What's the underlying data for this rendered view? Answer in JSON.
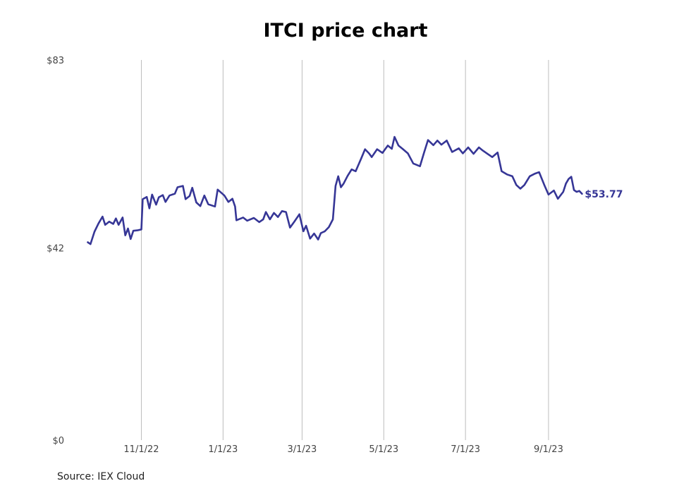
{
  "chart_data": {
    "type": "line",
    "title": "ITCI price chart",
    "source": "Source: IEX Cloud",
    "y_ticks": [
      {
        "value": 83,
        "label": "$83"
      },
      {
        "value": 42,
        "label": "$42"
      },
      {
        "value": 0,
        "label": "$0"
      }
    ],
    "x_ticks": [
      {
        "value": "2022-11-01",
        "label": "11/1/22"
      },
      {
        "value": "2023-01-01",
        "label": "1/1/23"
      },
      {
        "value": "2023-03-01",
        "label": "3/1/23"
      },
      {
        "value": "2023-05-01",
        "label": "5/1/23"
      },
      {
        "value": "2023-07-01",
        "label": "7/1/23"
      },
      {
        "value": "2023-09-01",
        "label": "9/1/23"
      }
    ],
    "ylim": [
      0,
      83
    ],
    "xlim": [
      "2022-09-07",
      "2023-10-30"
    ],
    "grid": "vertical",
    "line_color": "#363696",
    "last_value_label": "$53.77",
    "series": [
      {
        "values": [
          [
            "2022-09-22",
            43.2
          ],
          [
            "2022-09-24",
            42.8
          ],
          [
            "2022-09-27",
            45.5
          ],
          [
            "2022-09-30",
            47.3
          ],
          [
            "2022-10-03",
            48.8
          ],
          [
            "2022-10-05",
            47.0
          ],
          [
            "2022-10-08",
            47.7
          ],
          [
            "2022-10-11",
            47.2
          ],
          [
            "2022-10-13",
            48.4
          ],
          [
            "2022-10-15",
            47.0
          ],
          [
            "2022-10-18",
            48.6
          ],
          [
            "2022-10-20",
            44.7
          ],
          [
            "2022-10-22",
            46.2
          ],
          [
            "2022-10-24",
            43.9
          ],
          [
            "2022-10-26",
            45.7
          ],
          [
            "2022-10-29",
            45.8
          ],
          [
            "2022-11-01",
            46.0
          ],
          [
            "2022-11-02",
            52.6
          ],
          [
            "2022-11-05",
            53.1
          ],
          [
            "2022-11-07",
            50.6
          ],
          [
            "2022-11-09",
            53.6
          ],
          [
            "2022-11-12",
            51.4
          ],
          [
            "2022-11-14",
            53.0
          ],
          [
            "2022-11-17",
            53.5
          ],
          [
            "2022-11-19",
            52.0
          ],
          [
            "2022-11-22",
            53.4
          ],
          [
            "2022-11-26",
            53.8
          ],
          [
            "2022-11-28",
            55.2
          ],
          [
            "2022-12-02",
            55.5
          ],
          [
            "2022-12-04",
            52.6
          ],
          [
            "2022-12-07",
            53.3
          ],
          [
            "2022-12-09",
            55.1
          ],
          [
            "2022-12-12",
            51.9
          ],
          [
            "2022-12-15",
            51.1
          ],
          [
            "2022-12-18",
            53.4
          ],
          [
            "2022-12-21",
            51.5
          ],
          [
            "2022-12-26",
            51.0
          ],
          [
            "2022-12-28",
            54.7
          ],
          [
            "2023-01-02",
            53.4
          ],
          [
            "2023-01-05",
            52.0
          ],
          [
            "2023-01-08",
            52.7
          ],
          [
            "2023-01-10",
            51.0
          ],
          [
            "2023-01-11",
            48.0
          ],
          [
            "2023-01-16",
            48.6
          ],
          [
            "2023-01-19",
            47.9
          ],
          [
            "2023-01-24",
            48.5
          ],
          [
            "2023-01-28",
            47.6
          ],
          [
            "2023-01-31",
            48.2
          ],
          [
            "2023-02-02",
            49.8
          ],
          [
            "2023-02-05",
            48.2
          ],
          [
            "2023-02-08",
            49.6
          ],
          [
            "2023-02-11",
            48.7
          ],
          [
            "2023-02-14",
            50.0
          ],
          [
            "2023-02-17",
            49.8
          ],
          [
            "2023-02-20",
            46.4
          ],
          [
            "2023-02-23",
            47.6
          ],
          [
            "2023-02-27",
            49.3
          ],
          [
            "2023-03-02",
            45.6
          ],
          [
            "2023-03-04",
            46.8
          ],
          [
            "2023-03-07",
            44.0
          ],
          [
            "2023-03-10",
            45.1
          ],
          [
            "2023-03-13",
            43.8
          ],
          [
            "2023-03-15",
            45.2
          ],
          [
            "2023-03-18",
            45.6
          ],
          [
            "2023-03-21",
            46.5
          ],
          [
            "2023-03-24",
            48.2
          ],
          [
            "2023-03-26",
            55.5
          ],
          [
            "2023-03-28",
            57.6
          ],
          [
            "2023-03-30",
            55.2
          ],
          [
            "2023-04-01",
            56.0
          ],
          [
            "2023-04-04",
            57.7
          ],
          [
            "2023-04-07",
            59.1
          ],
          [
            "2023-04-10",
            58.7
          ],
          [
            "2023-04-14",
            61.4
          ],
          [
            "2023-04-17",
            63.5
          ],
          [
            "2023-04-20",
            62.6
          ],
          [
            "2023-04-22",
            61.8
          ],
          [
            "2023-04-26",
            63.5
          ],
          [
            "2023-04-30",
            62.7
          ],
          [
            "2023-05-04",
            64.3
          ],
          [
            "2023-05-07",
            63.6
          ],
          [
            "2023-05-09",
            66.2
          ],
          [
            "2023-05-12",
            64.3
          ],
          [
            "2023-05-15",
            63.6
          ],
          [
            "2023-05-19",
            62.6
          ],
          [
            "2023-05-23",
            60.4
          ],
          [
            "2023-05-28",
            59.8
          ],
          [
            "2023-05-31",
            62.7
          ],
          [
            "2023-06-03",
            65.5
          ],
          [
            "2023-06-07",
            64.4
          ],
          [
            "2023-06-10",
            65.4
          ],
          [
            "2023-06-13",
            64.5
          ],
          [
            "2023-06-17",
            65.4
          ],
          [
            "2023-06-21",
            62.9
          ],
          [
            "2023-06-26",
            63.7
          ],
          [
            "2023-06-29",
            62.6
          ],
          [
            "2023-07-03",
            63.9
          ],
          [
            "2023-07-07",
            62.5
          ],
          [
            "2023-07-11",
            63.9
          ],
          [
            "2023-07-14",
            63.2
          ],
          [
            "2023-07-18",
            62.4
          ],
          [
            "2023-07-21",
            61.8
          ],
          [
            "2023-07-25",
            62.8
          ],
          [
            "2023-07-28",
            58.7
          ],
          [
            "2023-08-01",
            58.0
          ],
          [
            "2023-08-05",
            57.6
          ],
          [
            "2023-08-08",
            55.7
          ],
          [
            "2023-08-11",
            54.9
          ],
          [
            "2023-08-14",
            55.7
          ],
          [
            "2023-08-18",
            57.6
          ],
          [
            "2023-08-22",
            58.2
          ],
          [
            "2023-08-25",
            58.5
          ],
          [
            "2023-08-29",
            55.6
          ],
          [
            "2023-09-01",
            53.6
          ],
          [
            "2023-09-05",
            54.5
          ],
          [
            "2023-09-08",
            52.7
          ],
          [
            "2023-09-12",
            54.2
          ],
          [
            "2023-09-14",
            56.0
          ],
          [
            "2023-09-16",
            57.0
          ],
          [
            "2023-09-18",
            57.5
          ],
          [
            "2023-09-20",
            54.6
          ],
          [
            "2023-09-22",
            54.2
          ],
          [
            "2023-09-24",
            54.4
          ],
          [
            "2023-09-26",
            53.77
          ]
        ]
      }
    ]
  }
}
